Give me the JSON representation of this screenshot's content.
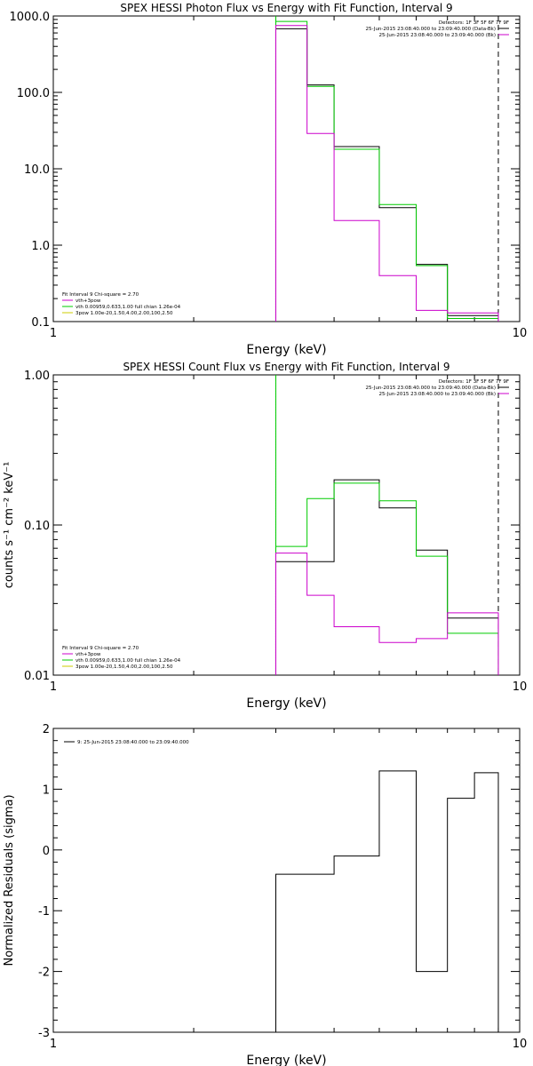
{
  "chart_data": [
    {
      "type": "line",
      "title": "SPEX HESSI Photon Flux vs Energy with Fit Function, Interval 9",
      "xlabel": "Energy (keV)",
      "ylabel": "",
      "x_scale": "log",
      "y_scale": "log",
      "xlim": [
        1,
        10
      ],
      "ylim": [
        0.1,
        1000
      ],
      "x_tick_labels": [
        {
          "value": 1,
          "label": "1"
        },
        {
          "value": 10,
          "label": "10"
        }
      ],
      "y_tick_labels": [
        {
          "value": 1000,
          "label": "1000.0"
        },
        {
          "value": 100,
          "label": "100.0"
        },
        {
          "value": 10,
          "label": "10.0"
        },
        {
          "value": 1,
          "label": "1.0"
        },
        {
          "value": 0.1,
          "label": "0.1"
        }
      ],
      "bin_edges": [
        3,
        3.5,
        4,
        5,
        6,
        7,
        8,
        9
      ],
      "series": [
        {
          "color": "#000000",
          "values": [
            680,
            125,
            19.5,
            3.1,
            0.56,
            0.12,
            0.12
          ]
        },
        {
          "color": "#00cc00",
          "values": [
            850,
            120,
            18,
            3.4,
            0.54,
            0.11,
            0.11
          ]
        },
        {
          "color": "#cc00cc",
          "values": [
            750,
            29,
            2.1,
            0.4,
            0.14,
            0.13,
            0.13
          ]
        }
      ],
      "vlines": [
        {
          "x": 3,
          "style": "dotted",
          "color": "#000000"
        },
        {
          "x": 3,
          "style": "solid",
          "color": "#00cc00"
        },
        {
          "x": 9,
          "style": "dashed",
          "color": "#000000"
        }
      ],
      "legend_top_right": {
        "header": "Detectors: 1F 3F 5F 6F 7F 9F",
        "rows": [
          {
            "text": "25-Jun-2015 23:08:40.000 to 23:09:40.000 (Data-Bk)",
            "color": "#000000"
          },
          {
            "text": "25-Jun-2015 23:08:40.000 to 23:09:40.000 (Bk)",
            "color": "#cc00cc"
          }
        ]
      },
      "legend_bottom_left": {
        "header": "Fit Interval 9   Chi-square = 2.70",
        "rows": [
          {
            "text": "vth+3pow",
            "color": "#cc00cc"
          },
          {
            "text": "vth 0.00959,0.633,1.00  full chian 1.26e-04",
            "color": "#00cc00"
          },
          {
            "text": "3pow 1.00e-20,1.50,4.00,2.00,100,2.50",
            "color": "#cccc00"
          }
        ]
      }
    },
    {
      "type": "line",
      "title": "SPEX HESSI Count Flux vs Energy with Fit Function, Interval 9",
      "xlabel": "Energy (keV)",
      "ylabel": "counts s⁻¹ cm⁻² keV⁻¹",
      "x_scale": "log",
      "y_scale": "log",
      "xlim": [
        1,
        10
      ],
      "ylim": [
        0.01,
        1
      ],
      "x_tick_labels": [
        {
          "value": 1,
          "label": "1"
        },
        {
          "value": 10,
          "label": "10"
        }
      ],
      "y_tick_labels": [
        {
          "value": 1,
          "label": "1.00"
        },
        {
          "value": 0.1,
          "label": "0.10"
        },
        {
          "value": 0.01,
          "label": "0.01"
        }
      ],
      "bin_edges": [
        3,
        3.5,
        4,
        5,
        6,
        7,
        8,
        9
      ],
      "series": [
        {
          "color": "#000000",
          "values": [
            0.057,
            0.057,
            0.2,
            0.13,
            0.068,
            0.024,
            0.024
          ]
        },
        {
          "color": "#00cc00",
          "values": [
            0.072,
            0.15,
            0.19,
            0.145,
            0.062,
            0.019,
            0.019
          ]
        },
        {
          "color": "#cc00cc",
          "values": [
            0.065,
            0.034,
            0.021,
            0.0165,
            0.0175,
            0.026,
            0.026
          ]
        }
      ],
      "vlines": [
        {
          "x": 3,
          "style": "dotted",
          "color": "#000000"
        },
        {
          "x": 3,
          "style": "solid",
          "color": "#00cc00"
        },
        {
          "x": 9,
          "style": "dashed",
          "color": "#000000"
        }
      ],
      "legend_top_right": {
        "header": "Detectors: 1F 3F 5F 6F 7F 9F",
        "rows": [
          {
            "text": "25-Jun-2015 23:08:40.000 to 23:09:40.000 (Data-Bk)",
            "color": "#000000"
          },
          {
            "text": "25-Jun-2015 23:08:40.000 to 23:09:40.000 (Bk)",
            "color": "#cc00cc"
          }
        ]
      },
      "legend_bottom_left": {
        "header": "Fit Interval 9   Chi-square = 2.70",
        "rows": [
          {
            "text": "vth+3pow",
            "color": "#cc00cc"
          },
          {
            "text": "vth 0.00959,0.633,1.00  full chian 1.26e-04",
            "color": "#00cc00"
          },
          {
            "text": "3pow 1.00e-20,1.50,4.00,2.00,100,2.50",
            "color": "#cccc00"
          }
        ]
      }
    },
    {
      "type": "line",
      "title": "",
      "xlabel": "Energy (keV)",
      "ylabel": "Normalized Residuals (sigma)",
      "x_scale": "log",
      "y_scale": "linear",
      "xlim": [
        1,
        10
      ],
      "ylim": [
        -3,
        2
      ],
      "x_tick_labels": [
        {
          "value": 1,
          "label": "1"
        },
        {
          "value": 10,
          "label": "10"
        }
      ],
      "y_tick_labels": [
        {
          "value": 2,
          "label": "2"
        },
        {
          "value": 1,
          "label": "1"
        },
        {
          "value": 0,
          "label": "0"
        },
        {
          "value": -1,
          "label": "-1"
        },
        {
          "value": -2,
          "label": "-2"
        },
        {
          "value": -3,
          "label": "-3"
        }
      ],
      "bin_edges": [
        3,
        4,
        5,
        6,
        7,
        8,
        9
      ],
      "series": [
        {
          "color": "#000000",
          "values": [
            -0.4,
            -0.1,
            1.3,
            -2.0,
            0.85,
            1.27
          ]
        }
      ],
      "vlines": [],
      "legend_top_left": {
        "rows": [
          {
            "text": "9: 25-Jun-2015 23:08:40.000 to 23:09:40.000",
            "color": "#000000"
          }
        ]
      }
    }
  ]
}
